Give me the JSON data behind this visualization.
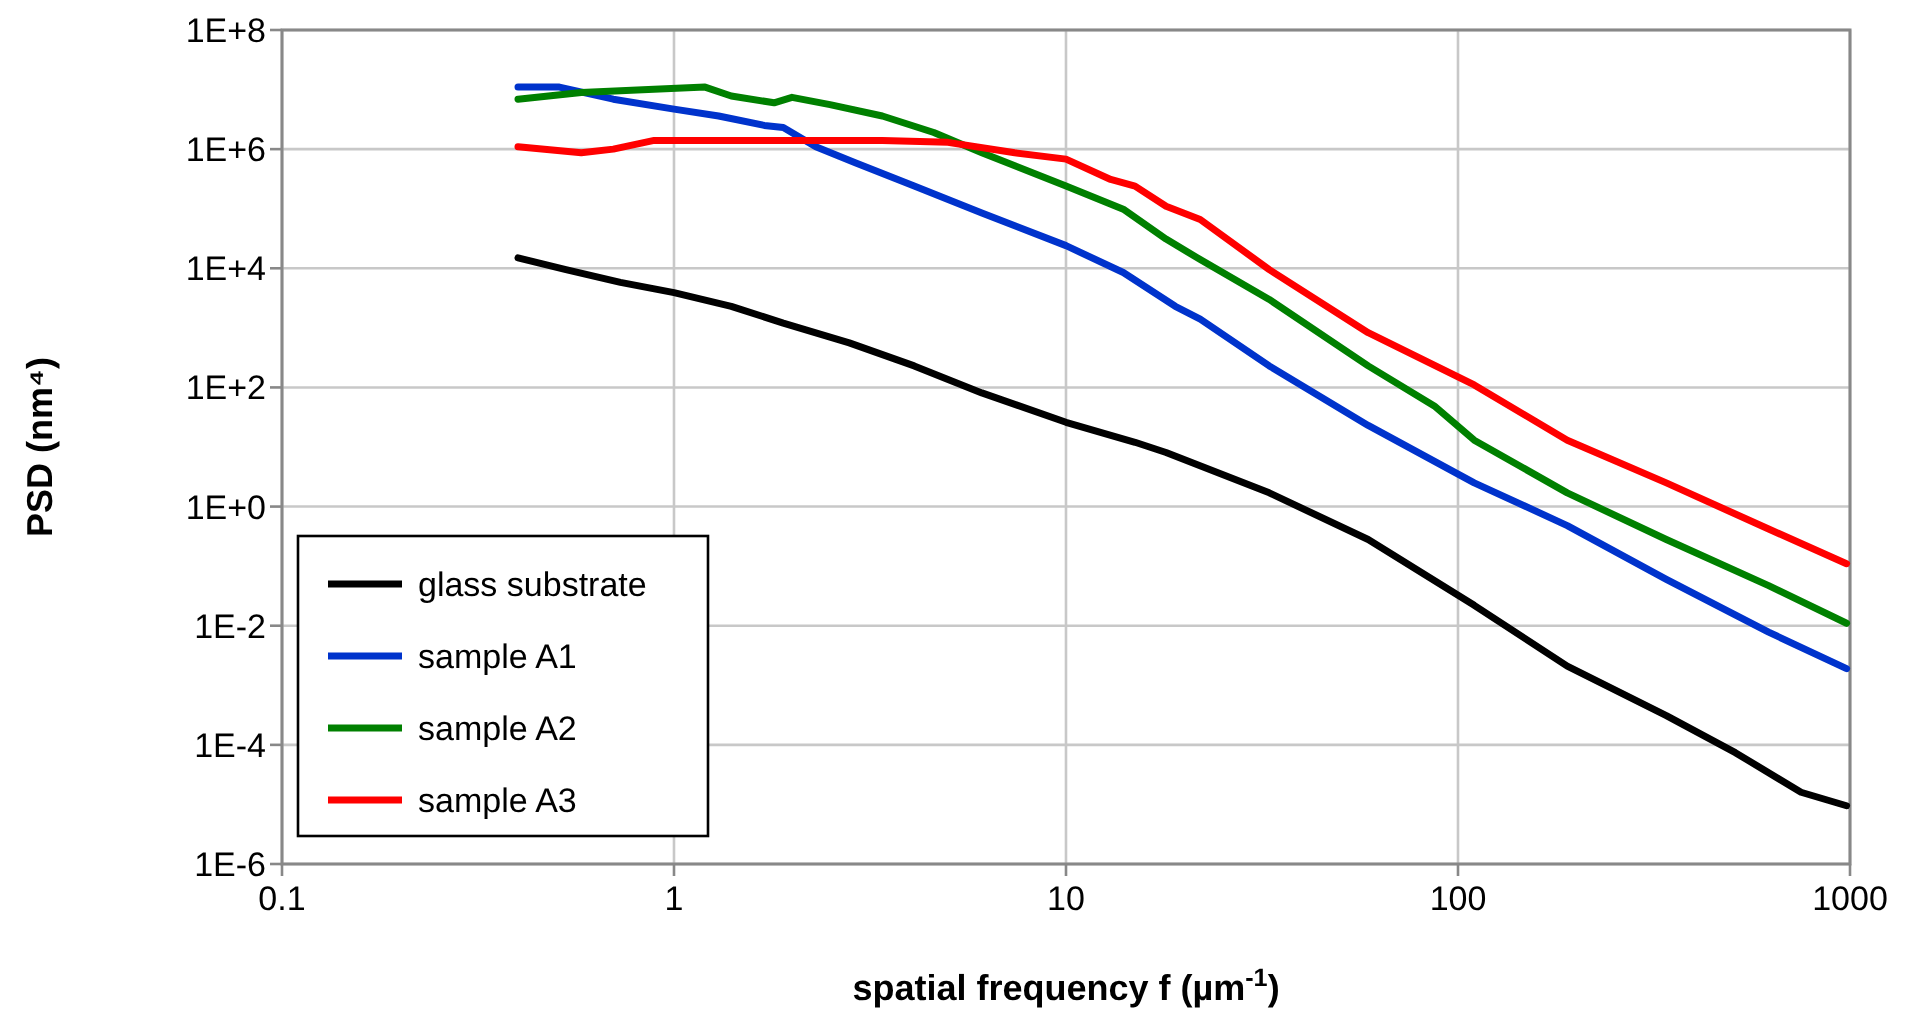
{
  "chart_data": {
    "type": "line",
    "xlabel": "spatial frequency f (µm$^{-1}$)",
    "ylabel": "PSD (nm⁴)",
    "log": "xy",
    "xlim": [
      0.1,
      1000
    ],
    "xticks": [
      0.1,
      1,
      10,
      100,
      1000
    ],
    "ylim": [
      1e-06,
      100000000.0
    ],
    "yticks": [
      {
        "value": 1e-06,
        "label": "1E-6"
      },
      {
        "value": 0.0001,
        "label": "1E-4"
      },
      {
        "value": 0.01,
        "label": "1E-2"
      },
      {
        "value": 1,
        "label": "1E+0"
      },
      {
        "value": 100,
        "label": "1E+2"
      },
      {
        "value": 10000.0,
        "label": "1E+4"
      },
      {
        "value": 1000000.0,
        "label": "1E+6"
      },
      {
        "value": 100000000.0,
        "label": "1E+8"
      }
    ],
    "grid": true,
    "legend": "bottom left",
    "marker": "none",
    "line_style": "solid",
    "series": [
      {
        "name": "glass substrate",
        "color": "#000000",
        "x": [
          0.4,
          0.53,
          0.73,
          1,
          1.4,
          1.9,
          2.8,
          4.1,
          6.1,
          10,
          15,
          18,
          33,
          59,
          110,
          190,
          340,
          510,
          750,
          980
        ],
        "values": [
          15000.0,
          9500.0,
          5800.0,
          3900.0,
          2300.0,
          1200.0,
          560,
          230,
          81,
          26,
          12,
          8.1,
          1.7,
          0.28,
          0.022,
          0.0021,
          0.00031,
          7.4e-05,
          1.6e-05,
          9.5e-06
        ]
      },
      {
        "name": "sample A1",
        "color": "#0033cc",
        "x": [
          0.4,
          0.51,
          0.7,
          1,
          1.3,
          1.7,
          1.9,
          2.3,
          2.9,
          4.1,
          6.1,
          10,
          14,
          19,
          22,
          33,
          59,
          110,
          190,
          340,
          620,
          980
        ],
        "values": [
          11000000.0,
          11000000.0,
          6900000.0,
          4700000.0,
          3600000.0,
          2500000.0,
          2300000.0,
          1100000.0,
          590000.0,
          240000.0,
          85000.0,
          24000.0,
          8500.0,
          2300.0,
          1400.0,
          230,
          23,
          2.5,
          0.48,
          0.06,
          0.0078,
          0.0019
        ]
      },
      {
        "name": "sample A2",
        "color": "#008000",
        "x": [
          0.4,
          0.58,
          0.86,
          1.2,
          1.4,
          1.8,
          2.0,
          2.5,
          3.4,
          4.6,
          6.1,
          10,
          14,
          18,
          22,
          33,
          59,
          87,
          110,
          190,
          340,
          620,
          980
        ],
        "values": [
          6900000.0,
          8900000.0,
          10000000.0,
          11000000.0,
          7800000.0,
          6000000.0,
          7400000.0,
          5600000.0,
          3600000.0,
          1900000.0,
          870000.0,
          240000.0,
          98000.0,
          31000.0,
          14000.0,
          3000.0,
          230,
          49,
          13,
          1.7,
          0.28,
          0.047,
          0.011
        ]
      },
      {
        "name": "sample A3",
        "color": "#ff0000",
        "x": [
          0.4,
          0.58,
          0.7,
          0.89,
          1.5,
          3.4,
          5.0,
          7.4,
          10,
          13,
          15,
          18,
          22,
          33,
          59,
          110,
          190,
          340,
          620,
          980
        ],
        "values": [
          1100000.0,
          870000.0,
          1000000.0,
          1400000.0,
          1400000.0,
          1400000.0,
          1300000.0,
          870000.0,
          680000.0,
          310000.0,
          240000.0,
          110000.0,
          66000.0,
          9500.0,
          830,
          110,
          13,
          2.5,
          0.42,
          0.11
        ]
      }
    ]
  }
}
